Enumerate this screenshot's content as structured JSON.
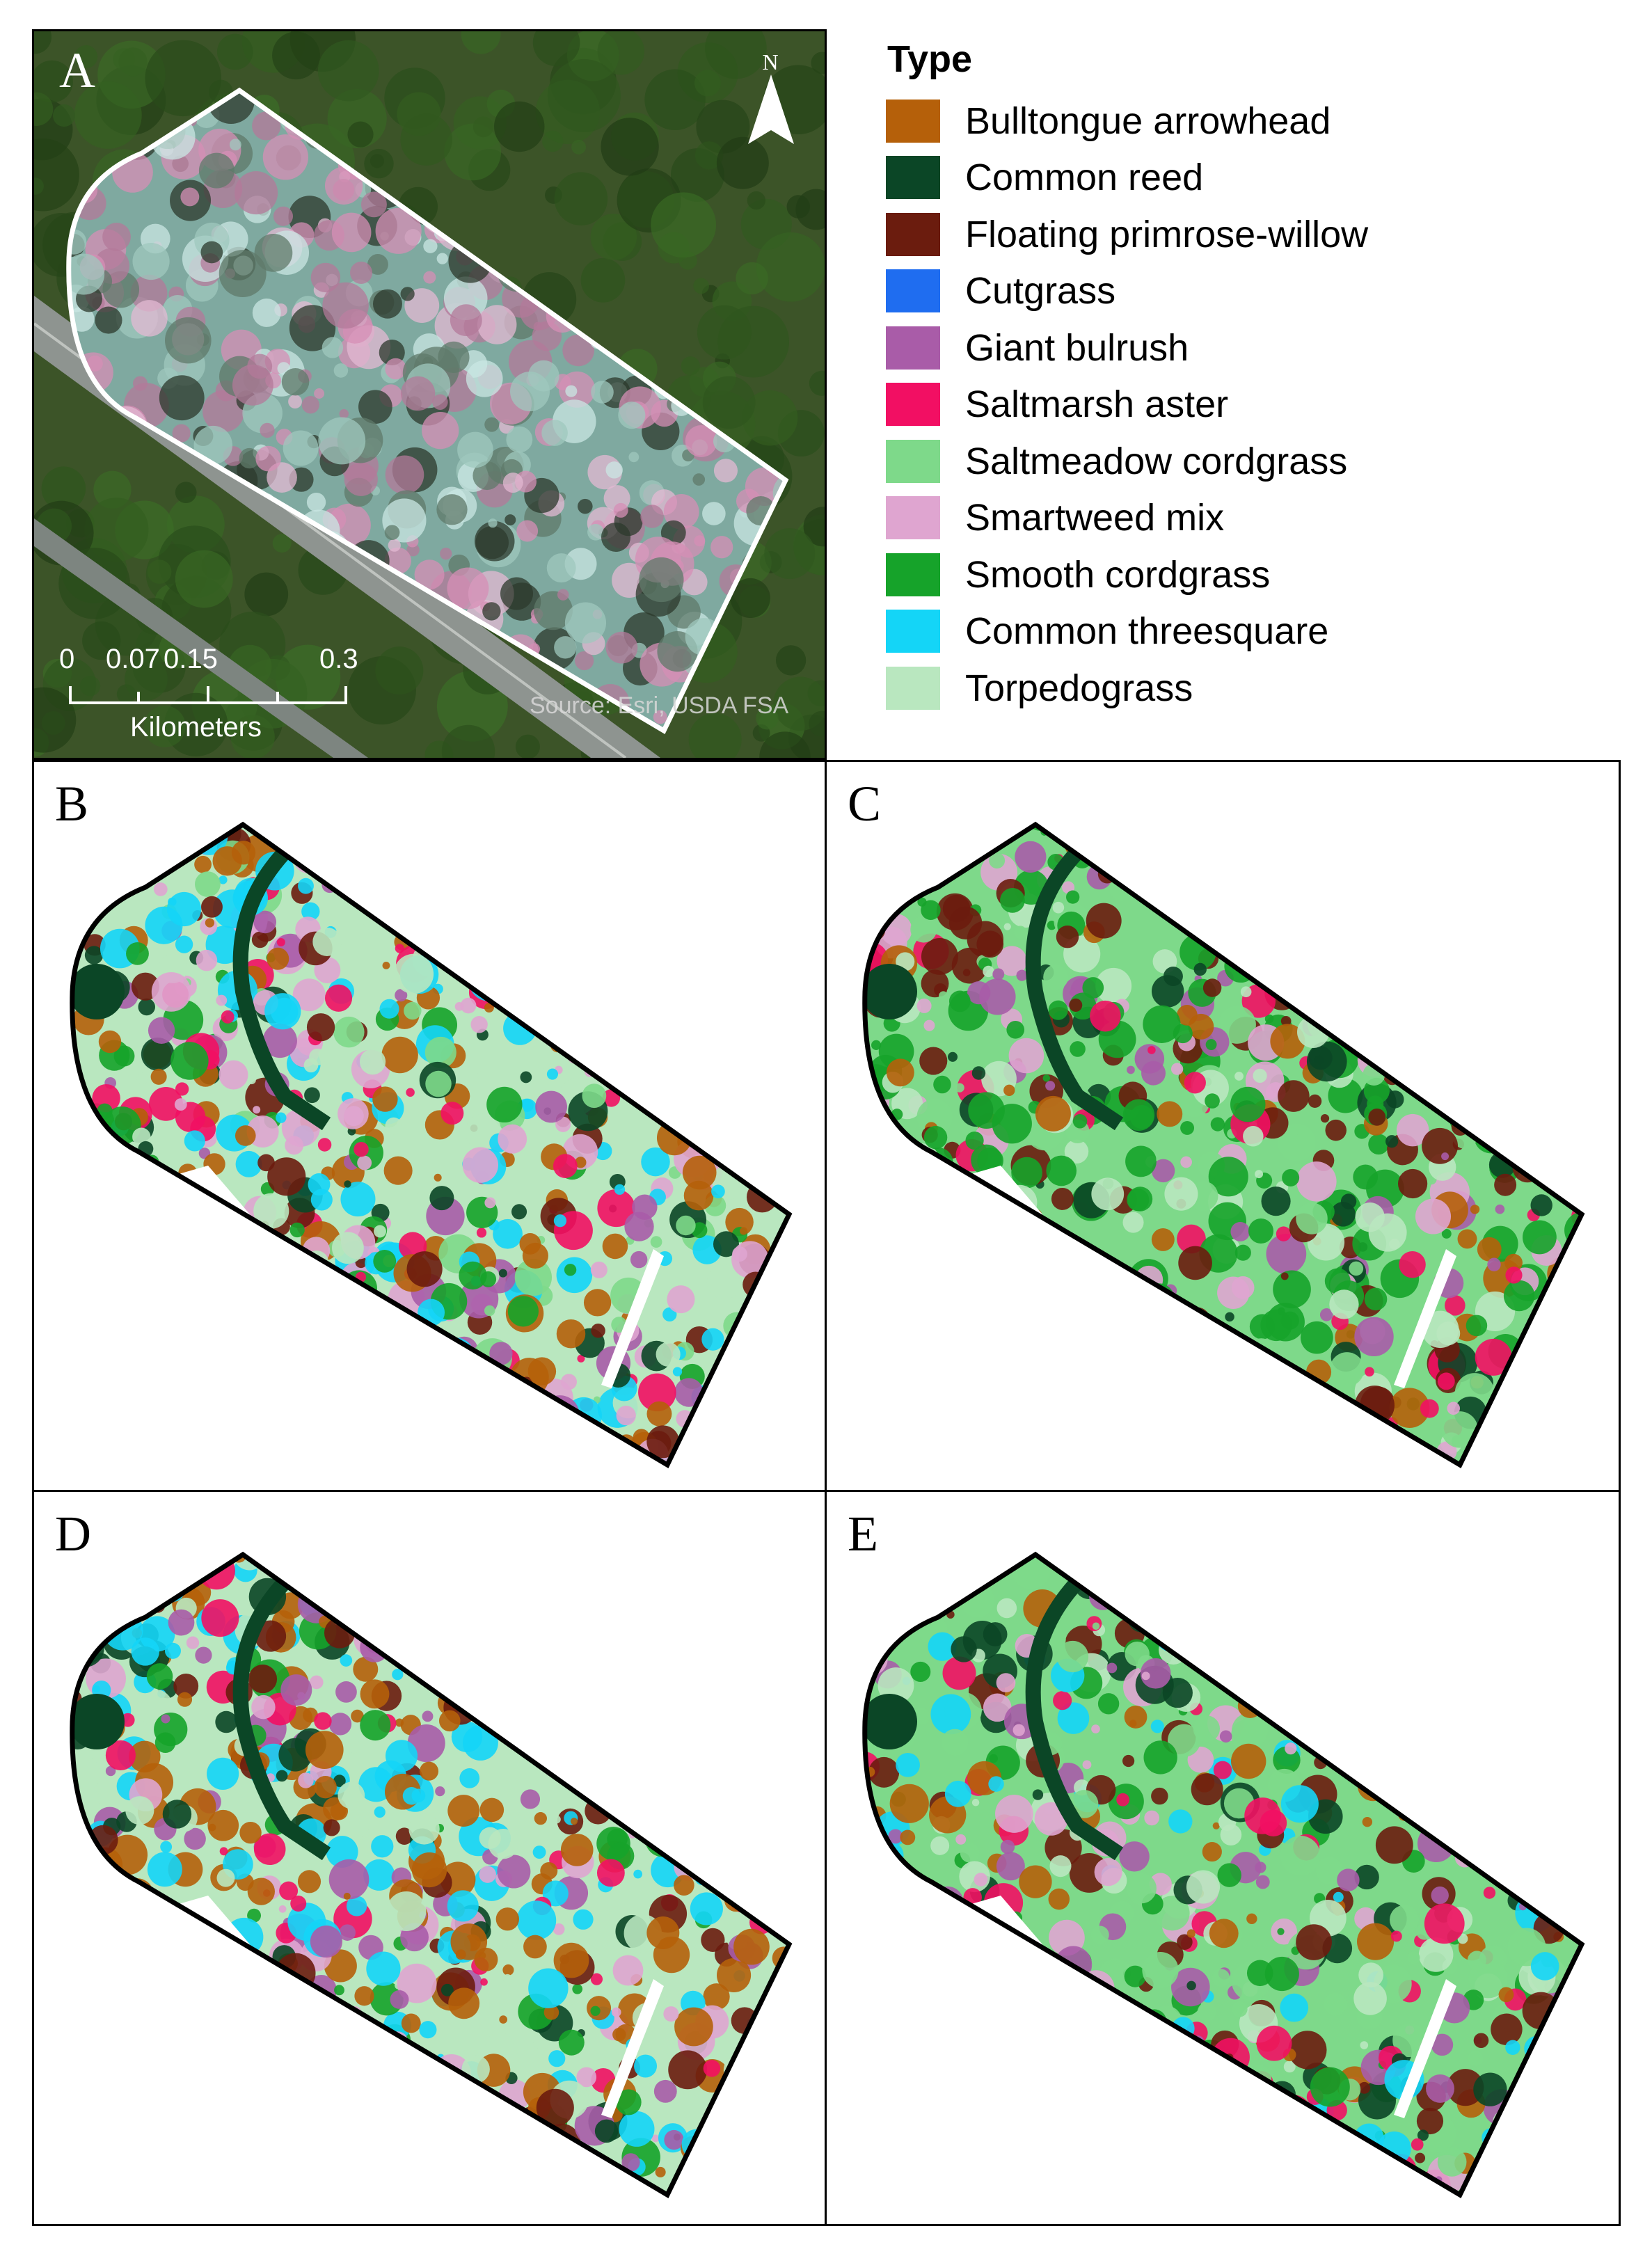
{
  "panels": {
    "a": {
      "label": "A"
    },
    "b": {
      "label": "B"
    },
    "c": {
      "label": "C"
    },
    "d": {
      "label": "D"
    },
    "e": {
      "label": "E"
    }
  },
  "north_arrow": {
    "label": "N"
  },
  "scale_bar": {
    "ticks": [
      "0",
      "0.07",
      "0.15",
      "0.3"
    ],
    "unit": "Kilometers"
  },
  "source_credit": "Source: Esri, USDA FSA",
  "legend": {
    "title": "Type",
    "items": [
      {
        "label": "Bulltongue arrowhead",
        "color": "#b5600a"
      },
      {
        "label": "Common reed",
        "color": "#0b4626"
      },
      {
        "label": "Floating primrose-willow",
        "color": "#6b1c0e"
      },
      {
        "label": "Cutgrass",
        "color": "#1f6df0"
      },
      {
        "label": "Giant bulrush",
        "color": "#a95ca8"
      },
      {
        "label": "Saltmarsh aster",
        "color": "#f20f63"
      },
      {
        "label": "Saltmeadow cordgrass",
        "color": "#7ed98a"
      },
      {
        "label": "Smartweed mix",
        "color": "#dfa5d0"
      },
      {
        "label": "Smooth cordgrass",
        "color": "#16a32a"
      },
      {
        "label": "Common threesquare",
        "color": "#14d5f7"
      },
      {
        "label": "Torpedograss",
        "color": "#b9e7bf"
      }
    ]
  }
}
